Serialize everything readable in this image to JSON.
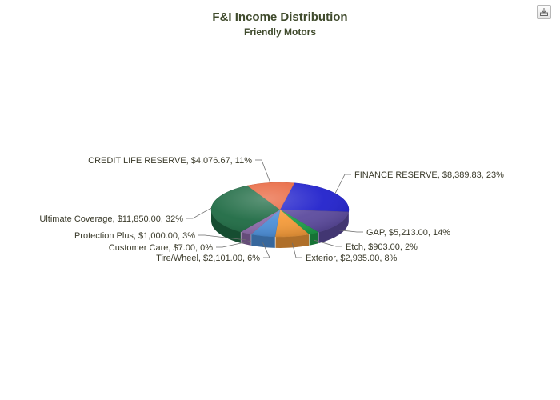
{
  "chart_data": {
    "type": "pie",
    "title": "F&I Income Distribution",
    "subtitle": "Friendly Motors",
    "slices": [
      {
        "label": "FINANCE RESERVE, $8,389.83, 23%",
        "name": "FINANCE RESERVE",
        "value": 8389.83,
        "percent": 23,
        "color": "#2222cc"
      },
      {
        "label": "GAP, $5,213.00, 14%",
        "name": "GAP",
        "value": 5213.0,
        "percent": 14,
        "color": "#5c4b9e"
      },
      {
        "label": "Etch, $903.00, 2%",
        "name": "Etch",
        "value": 903.0,
        "percent": 2,
        "color": "#1e9e4a"
      },
      {
        "label": "Exterior, $2,935.00, 8%",
        "name": "Exterior",
        "value": 2935.0,
        "percent": 8,
        "color": "#f39a3a"
      },
      {
        "label": "Tire/Wheel, $2,101.00, 6%",
        "name": "Tire/Wheel",
        "value": 2101.0,
        "percent": 6,
        "color": "#4d8fd8"
      },
      {
        "label": "Customer Care, $7.00, 0%",
        "name": "Customer Care",
        "value": 7.0,
        "percent": 0,
        "color": "#b0b0b8"
      },
      {
        "label": "Protection Plus, $1,000.00, 3%",
        "name": "Protection Plus",
        "value": 1000.0,
        "percent": 3,
        "color": "#8c6aa8"
      },
      {
        "label": "Ultimate Coverage, $11,850.00, 32%",
        "name": "Ultimate Coverage",
        "value": 11850.0,
        "percent": 32,
        "color": "#1f6b44"
      },
      {
        "label": "CREDIT LIFE RESERVE, $4,076.67, 11%",
        "name": "CREDIT LIFE RESERVE",
        "value": 4076.67,
        "percent": 11,
        "color": "#e8643c"
      }
    ],
    "legend": "none"
  },
  "toolbar": {
    "export_icon": "download-icon"
  }
}
